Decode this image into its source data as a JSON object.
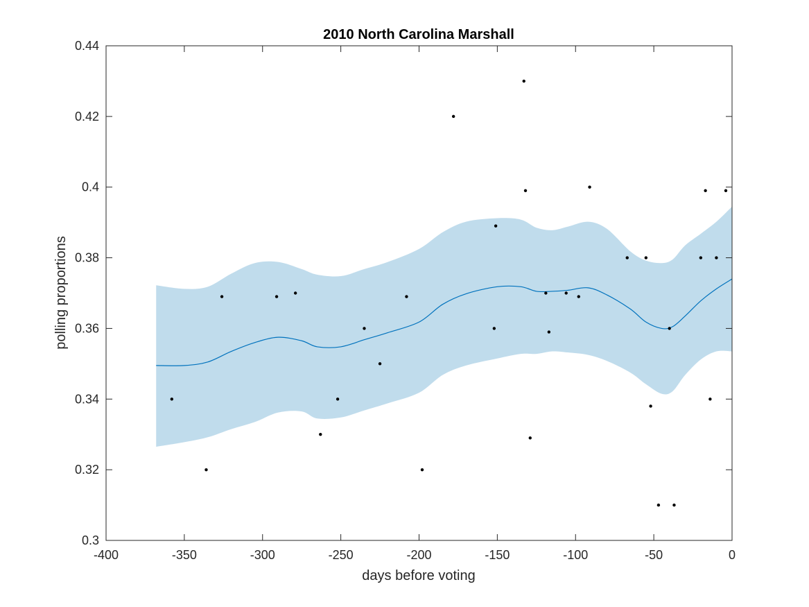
{
  "chart_data": {
    "type": "scatter",
    "title": "2010 North Carolina Marshall",
    "xlabel": "days before voting",
    "ylabel": "polling proportions",
    "xlim": [
      -400,
      0
    ],
    "ylim": [
      0.3,
      0.44
    ],
    "xticks": [
      -400,
      -350,
      -300,
      -250,
      -200,
      -150,
      -100,
      -50,
      0
    ],
    "xtick_labels": [
      "-400",
      "-350",
      "-300",
      "-250",
      "-200",
      "-150",
      "-100",
      "-50",
      "0"
    ],
    "yticks": [
      0.3,
      0.32,
      0.34,
      0.36,
      0.38,
      0.4,
      0.42,
      0.44
    ],
    "ytick_labels": [
      "0.3",
      "0.32",
      "0.34",
      "0.36",
      "0.38",
      "0.4",
      "0.42",
      "0.44"
    ],
    "grid": false,
    "colors": {
      "band": "#c0dcec",
      "trend": "#0072bd",
      "points": "#000000",
      "axis": "#262626"
    },
    "series": [
      {
        "type": "scatter",
        "x": [
          -358,
          -336,
          -326,
          -291,
          -279,
          -263,
          -252,
          -235,
          -225,
          -208,
          -198,
          -178,
          -152,
          -151,
          -133,
          -132,
          -129,
          -119,
          -117,
          -106,
          -98,
          -91,
          -67,
          -55,
          -52,
          -47,
          -40,
          -37,
          -20,
          -17,
          -14,
          -10,
          -4
        ],
        "y": [
          0.34,
          0.32,
          0.369,
          0.369,
          0.37,
          0.33,
          0.34,
          0.36,
          0.35,
          0.369,
          0.32,
          0.42,
          0.36,
          0.389,
          0.43,
          0.399,
          0.329,
          0.37,
          0.359,
          0.37,
          0.369,
          0.4,
          0.38,
          0.38,
          0.338,
          0.31,
          0.36,
          0.31,
          0.38,
          0.399,
          0.34,
          0.38,
          0.399
        ]
      },
      {
        "type": "line",
        "x": [
          -368,
          -350,
          -335,
          -320,
          -305,
          -290,
          -275,
          -265,
          -250,
          -235,
          -220,
          -200,
          -185,
          -170,
          -150,
          -135,
          -125,
          -115,
          -105,
          -92,
          -80,
          -65,
          -55,
          -45,
          -38,
          -30,
          -20,
          -10,
          0
        ],
        "y": [
          0.3495,
          0.3495,
          0.3505,
          0.3535,
          0.356,
          0.3575,
          0.3565,
          0.3548,
          0.3548,
          0.3568,
          0.3588,
          0.3618,
          0.3668,
          0.3698,
          0.3718,
          0.3718,
          0.3705,
          0.3705,
          0.3708,
          0.3715,
          0.3695,
          0.3655,
          0.3618,
          0.36,
          0.3605,
          0.3635,
          0.3678,
          0.3712,
          0.374
        ]
      },
      {
        "type": "area",
        "x": [
          -368,
          -350,
          -335,
          -320,
          -305,
          -290,
          -275,
          -265,
          -250,
          -235,
          -220,
          -200,
          -185,
          -170,
          -150,
          -135,
          -125,
          -115,
          -105,
          -92,
          -80,
          -65,
          -55,
          -45,
          -38,
          -30,
          -20,
          -10,
          0
        ],
        "upper": [
          0.3722,
          0.3712,
          0.3718,
          0.3755,
          0.3785,
          0.3788,
          0.3768,
          0.3752,
          0.3748,
          0.3768,
          0.3788,
          0.3825,
          0.3872,
          0.3902,
          0.3912,
          0.3908,
          0.3885,
          0.3878,
          0.3888,
          0.3902,
          0.3882,
          0.3818,
          0.3792,
          0.3785,
          0.3795,
          0.3835,
          0.3868,
          0.3902,
          0.3945
        ],
        "lower": [
          0.3265,
          0.3278,
          0.3292,
          0.3315,
          0.3335,
          0.3362,
          0.3365,
          0.3345,
          0.3348,
          0.3368,
          0.3388,
          0.3418,
          0.3468,
          0.3495,
          0.3515,
          0.3528,
          0.3528,
          0.3535,
          0.3532,
          0.3525,
          0.3508,
          0.3475,
          0.3442,
          0.3415,
          0.3422,
          0.3468,
          0.3512,
          0.3535,
          0.3535
        ]
      }
    ]
  }
}
